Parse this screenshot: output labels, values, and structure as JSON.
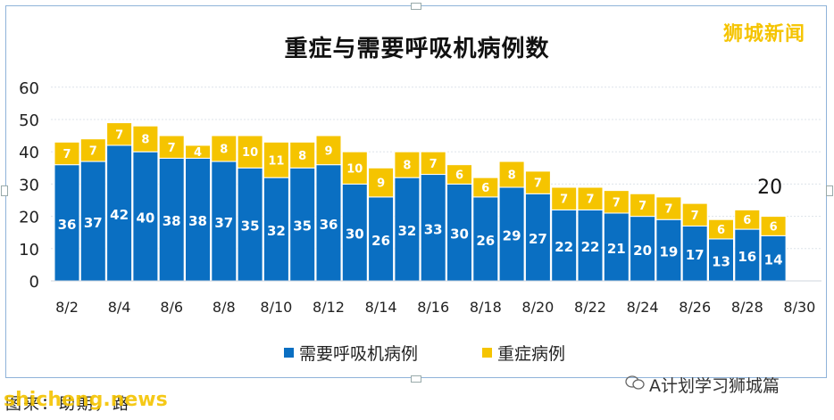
{
  "chart_data": {
    "type": "bar",
    "stacked": true,
    "title": "重症与需要呼吸机病例数",
    "categories": [
      "8/2",
      "8/3",
      "8/4",
      "8/5",
      "8/6",
      "8/7",
      "8/8",
      "8/9",
      "8/10",
      "8/11",
      "8/12",
      "8/13",
      "8/14",
      "8/15",
      "8/16",
      "8/17",
      "8/18",
      "8/19",
      "8/20",
      "8/21",
      "8/22",
      "8/23",
      "8/24",
      "8/25",
      "8/26",
      "8/27",
      "8/28",
      "8/29",
      "8/30"
    ],
    "x_tick_labels": [
      "8/2",
      "8/4",
      "8/6",
      "8/8",
      "8/10",
      "8/12",
      "8/14",
      "8/16",
      "8/18",
      "8/20",
      "8/22",
      "8/24",
      "8/26",
      "8/28",
      "8/30"
    ],
    "series": [
      {
        "name": "需要呼吸机病例",
        "color": "#0a6fc2",
        "values": [
          36,
          37,
          42,
          40,
          38,
          38,
          37,
          35,
          32,
          35,
          36,
          30,
          26,
          32,
          33,
          30,
          26,
          29,
          27,
          22,
          22,
          21,
          20,
          19,
          17,
          13,
          16,
          14,
          null
        ]
      },
      {
        "name": "重症病例",
        "color": "#f5c400",
        "values": [
          7,
          7,
          7,
          8,
          7,
          4,
          8,
          10,
          11,
          8,
          9,
          10,
          9,
          8,
          7,
          6,
          6,
          8,
          7,
          7,
          7,
          7,
          7,
          7,
          7,
          6,
          6,
          6,
          null
        ]
      }
    ],
    "y_ticks": [
      0,
      10,
      20,
      30,
      40,
      50,
      60
    ],
    "ylim": [
      0,
      60
    ],
    "annotation": {
      "text": "20",
      "category": "8/29"
    },
    "legend": "bottom"
  },
  "watermark": "狮城新闻",
  "credit": "A计划学习狮城篇",
  "bottom_text_1": "图来：助期，路",
  "bottom_text_2": "shicheng.news"
}
